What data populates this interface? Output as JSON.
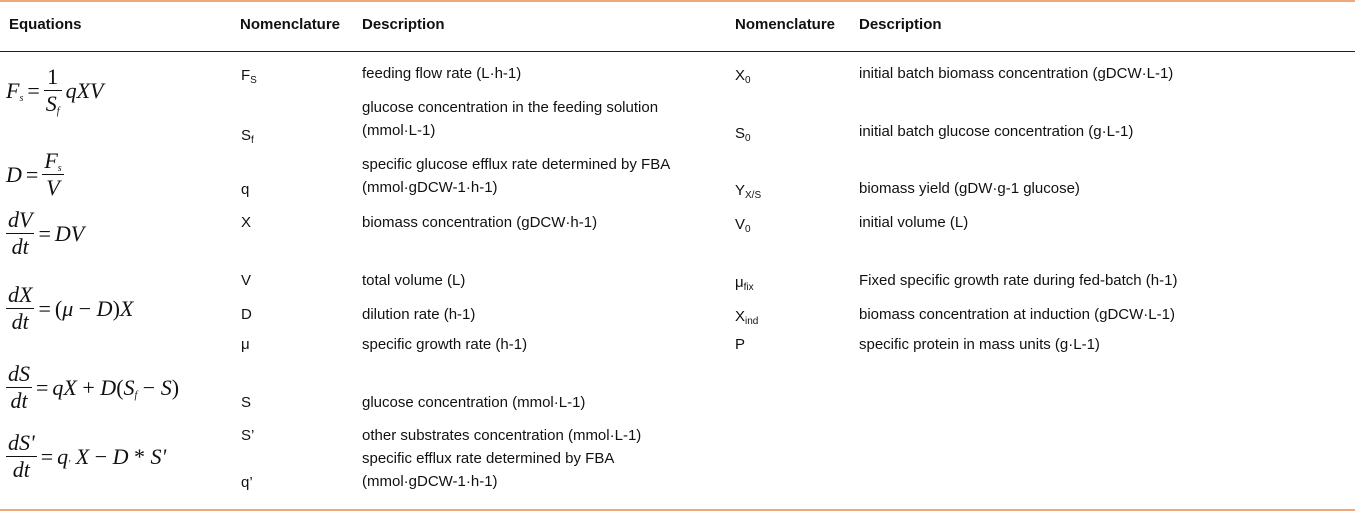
{
  "headers": {
    "equations": "Equations",
    "nomenclature1": "Nomenclature",
    "description1": "Description",
    "nomenclature2": "Nomenclature",
    "description2": "Description"
  },
  "equations": [
    "F_s = (1/S_f) qXV",
    "D = F_s / V",
    "dV/dt = DV",
    "dX/dt = (μ − D)X",
    "dS/dt = qX + D(S_f − S)",
    "dS'/dt = q' X − D * S'"
  ],
  "left_rows": [
    {
      "sym": "F",
      "sub": "S",
      "desc": [
        "feeding flow rate (L·h-1)"
      ]
    },
    {
      "sym": "S",
      "sub": "f",
      "desc": [
        "glucose concentration in the feeding solution",
        "(mmol·L-1)"
      ]
    },
    {
      "sym": "q",
      "sub": "",
      "desc": [
        "specific glucose efflux rate determined by FBA",
        "(mmol·gDCW-1·h-1)"
      ]
    },
    {
      "sym": "X",
      "sub": "",
      "desc": [
        "biomass concentration (gDCW·h-1)"
      ]
    },
    {
      "sym": "V",
      "sub": "",
      "desc": [
        "total volume (L)"
      ]
    },
    {
      "sym": "D",
      "sub": "",
      "desc": [
        "dilution rate (h-1)"
      ]
    },
    {
      "sym": "μ",
      "sub": "",
      "desc": [
        "specific growth rate (h-1)"
      ]
    },
    {
      "sym": "S",
      "sub": "",
      "desc": [
        "glucose concentration (mmol·L-1)"
      ]
    },
    {
      "sym": "S’",
      "sub": "",
      "desc": [
        "other substrates concentration (mmol·L-1)"
      ]
    },
    {
      "sym": "q’",
      "sub": "",
      "desc": [
        "specific efflux rate determined by FBA",
        "(mmol·gDCW-1·h-1)"
      ]
    }
  ],
  "right_rows": [
    {
      "sym": "X",
      "sub": "0",
      "desc": "initial batch biomass concentration (gDCW·L-1)"
    },
    {
      "sym": "S",
      "sub": "0",
      "desc": "initial batch glucose concentration (g·L-1)"
    },
    {
      "sym": "Y",
      "sub": "X/S",
      "desc": "biomass yield (gDW·g-1 glucose)"
    },
    {
      "sym": "V",
      "sub": "0",
      "desc": "initial volume (L)"
    },
    {
      "sym": "μ",
      "sub": "fix",
      "desc": "Fixed specific growth rate during fed-batch (h-1)"
    },
    {
      "sym": "X",
      "sub": "ind",
      "desc": "biomass concentration at induction (gDCW·L-1)"
    },
    {
      "sym": "P",
      "sub": "",
      "desc": "specific protein in mass units (g·L-1)"
    }
  ]
}
